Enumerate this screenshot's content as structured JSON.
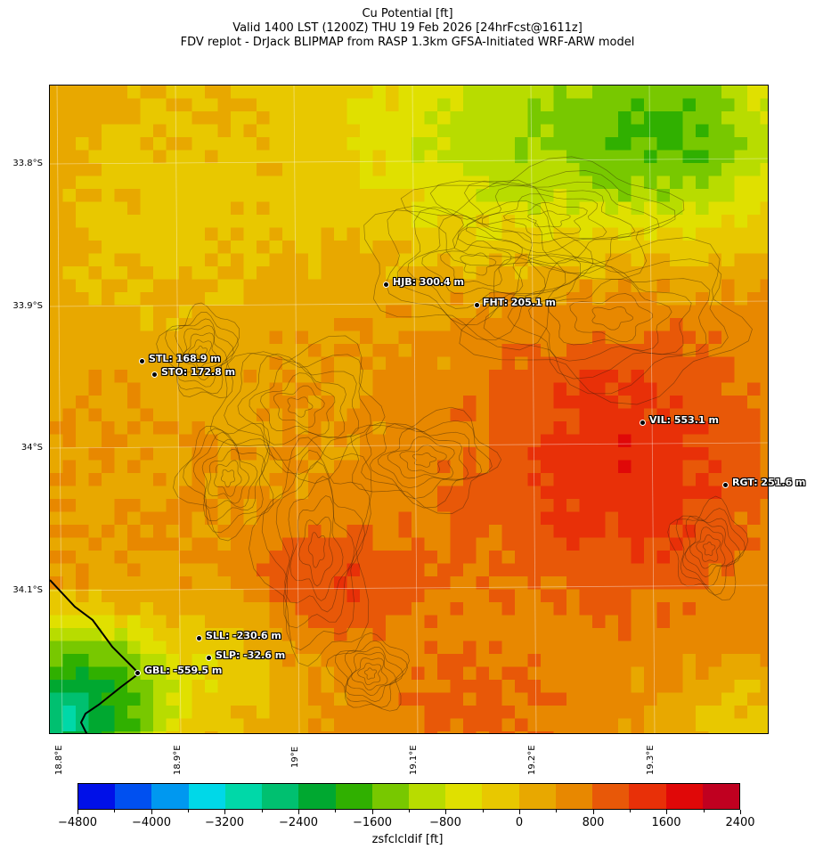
{
  "title": {
    "line1": "Cu Potential [ft]",
    "line2": "Valid 1400 LST (1200Z) THU 19 Feb 2026 [24hrFcst@1611z]",
    "line3": "FDV replot - DrJack BLIPMAP from RASP 1.3km GFSA-Initiated WRF-ARW model"
  },
  "map": {
    "lat_labels": [
      "33.8°S",
      "33.9°S",
      "34°S",
      "34.1°S"
    ],
    "lon_labels": [
      "18.8°E",
      "18.9°E",
      "19°E",
      "19.1°E",
      "19.2°E",
      "19.3°E"
    ]
  },
  "stations": [
    {
      "code": "HJB",
      "label": "HJB: 300.4 m",
      "value_m": 300.4
    },
    {
      "code": "FHT",
      "label": "FHT: 205.1 m",
      "value_m": 205.1
    },
    {
      "code": "STL",
      "label": "STL: 168.9 m",
      "value_m": 168.9
    },
    {
      "code": "STO",
      "label": "STO: 172.8 m",
      "value_m": 172.8
    },
    {
      "code": "VIL",
      "label": "VIL: 553.1 m",
      "value_m": 553.1
    },
    {
      "code": "RGT",
      "label": "RGT: 251.6 m",
      "value_m": 251.6
    },
    {
      "code": "SLL",
      "label": "SLL: -230.6 m",
      "value_m": -230.6
    },
    {
      "code": "SLP",
      "label": "SLP: -32.6 m",
      "value_m": -32.6
    },
    {
      "code": "GBL",
      "label": "GBL: -559.5 m",
      "value_m": -559.5
    }
  ],
  "colorbar": {
    "label": "zsfclcldif [ft]",
    "min": -4800,
    "max": 2400,
    "step": 400,
    "tick_labels": [
      "−4800",
      "−4000",
      "−3200",
      "−2400",
      "−1600",
      "−800",
      "0",
      "800",
      "1600",
      "2400"
    ],
    "colors": [
      "#0010e8",
      "#0050f0",
      "#0098f0",
      "#00d8e8",
      "#00d8a8",
      "#00c070",
      "#00a830",
      "#30b000",
      "#78c800",
      "#b8dc00",
      "#e0e000",
      "#e8c800",
      "#e8a800",
      "#e88800",
      "#e85808",
      "#e83008",
      "#e00808",
      "#c00020"
    ]
  }
}
